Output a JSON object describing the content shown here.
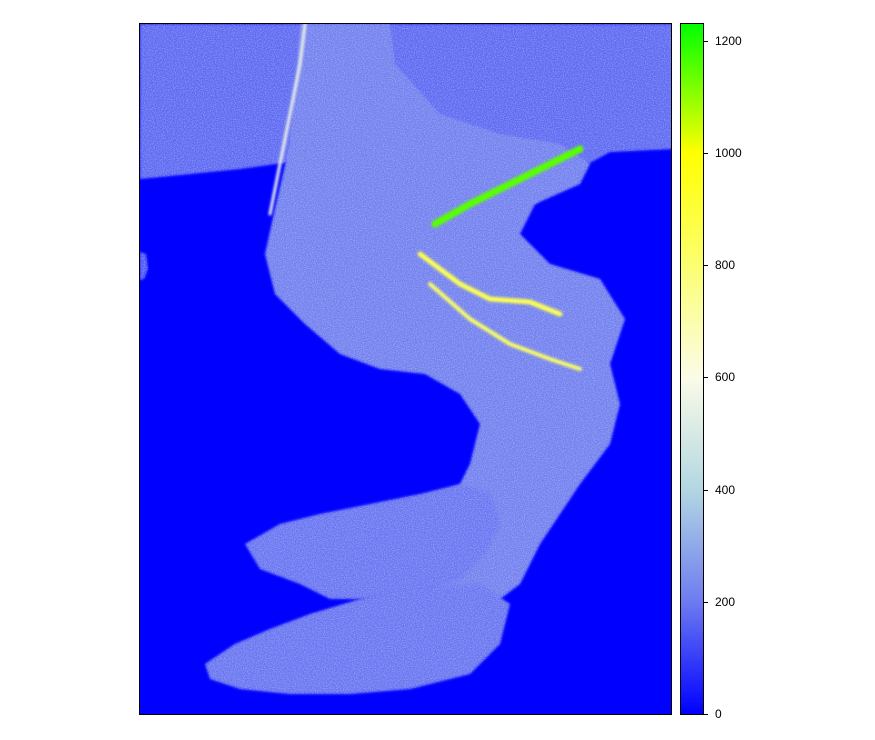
{
  "chart_data": {
    "type": "heatmap",
    "title": "",
    "xlabel": "",
    "ylabel": "",
    "colorbar": {
      "min": 0,
      "max": 1230,
      "ticks": [
        {
          "value": 0,
          "label": "0"
        },
        {
          "value": 200,
          "label": "200"
        },
        {
          "value": 400,
          "label": "400"
        },
        {
          "value": 600,
          "label": "600"
        },
        {
          "value": 800,
          "label": "800"
        },
        {
          "value": 1000,
          "label": "1000"
        },
        {
          "value": 1200,
          "label": "1200"
        }
      ],
      "colormap": [
        {
          "value": 0,
          "color": "#0000ff"
        },
        {
          "value": 200,
          "color": "#6d7bf0"
        },
        {
          "value": 400,
          "color": "#b3d7e2"
        },
        {
          "value": 600,
          "color": "#fbfbe8"
        },
        {
          "value": 800,
          "color": "#fbff70"
        },
        {
          "value": 1000,
          "color": "#ffff00"
        },
        {
          "value": 1230,
          "color": "#00ff00"
        }
      ]
    },
    "background_value": 0,
    "regions": [
      {
        "name": "top-band",
        "value": 170
      },
      {
        "name": "main-arm",
        "value": 210
      },
      {
        "name": "lower-finger",
        "value": 190
      },
      {
        "name": "bottom-finger",
        "value": 190
      },
      {
        "name": "left-stub",
        "value": 150
      }
    ],
    "ridges": [
      {
        "name": "upper-ridge",
        "value": 1150
      },
      {
        "name": "middle-ridge",
        "value": 850
      },
      {
        "name": "lower-ridge",
        "value": 820
      },
      {
        "name": "edge-ridge",
        "value": 560
      }
    ],
    "grid": false
  }
}
